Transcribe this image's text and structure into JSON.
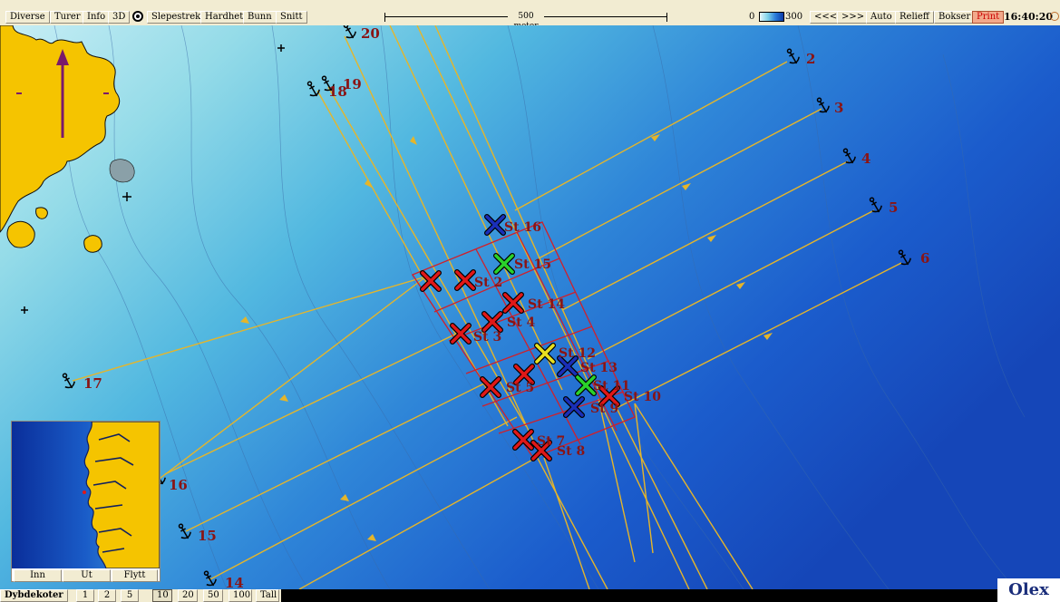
{
  "toolbar": {
    "diverse": "Diverse",
    "turer": "Turer",
    "info": "Info",
    "view3d": "3D",
    "slepestrek": "Slepestrek",
    "hardhet": "Hardhet",
    "bunn": "Bunn",
    "snitt": "Snitt",
    "scale_label": "500 meter",
    "depth_min": "0",
    "depth_max": "300",
    "back": "<<<",
    "forward": ">>>",
    "auto": "Auto",
    "relieff": "Relieff",
    "bokser": "Bokser",
    "print": "Print",
    "clock": "16:40:20"
  },
  "bottom_bar": {
    "label": "Dybdekoter",
    "options": [
      "1",
      "2",
      "5",
      "10",
      "20",
      "50",
      "100",
      "Tall"
    ],
    "selected": "10"
  },
  "inset": {
    "inn": "Inn",
    "ut": "Ut",
    "flytt": "Flytt"
  },
  "logo": "Olex",
  "anchors": [
    "2",
    "3",
    "4",
    "5",
    "6",
    "14",
    "15",
    "16",
    "17",
    "18",
    "19",
    "20"
  ],
  "stations": [
    {
      "label": "St 16",
      "color": "#1a2fb8"
    },
    {
      "label": "St 15",
      "color": "#2bd22b"
    },
    {
      "label": "St 2",
      "color": "#e01818"
    },
    {
      "label": "St 14",
      "color": "#e01818"
    },
    {
      "label": "St 4",
      "color": "#e01818"
    },
    {
      "label": "St 3",
      "color": "#e01818"
    },
    {
      "label": "St 12",
      "color": "#e8e020"
    },
    {
      "label": "St 13",
      "color": "#1a2fb8"
    },
    {
      "label": "St 11",
      "color": "#2bd22b"
    },
    {
      "label": "St 10",
      "color": "#e01818"
    },
    {
      "label": "St 9",
      "color": "#1a2fb8"
    },
    {
      "label": "St 5",
      "color": "#e01818"
    },
    {
      "label": "St 7",
      "color": "#e01818"
    },
    {
      "label": "St 8",
      "color": "#e01818"
    }
  ],
  "colors": {
    "land": "#f5c400",
    "track": "#e5b52a",
    "grid": "#d0202a",
    "label": "#8a1414"
  }
}
